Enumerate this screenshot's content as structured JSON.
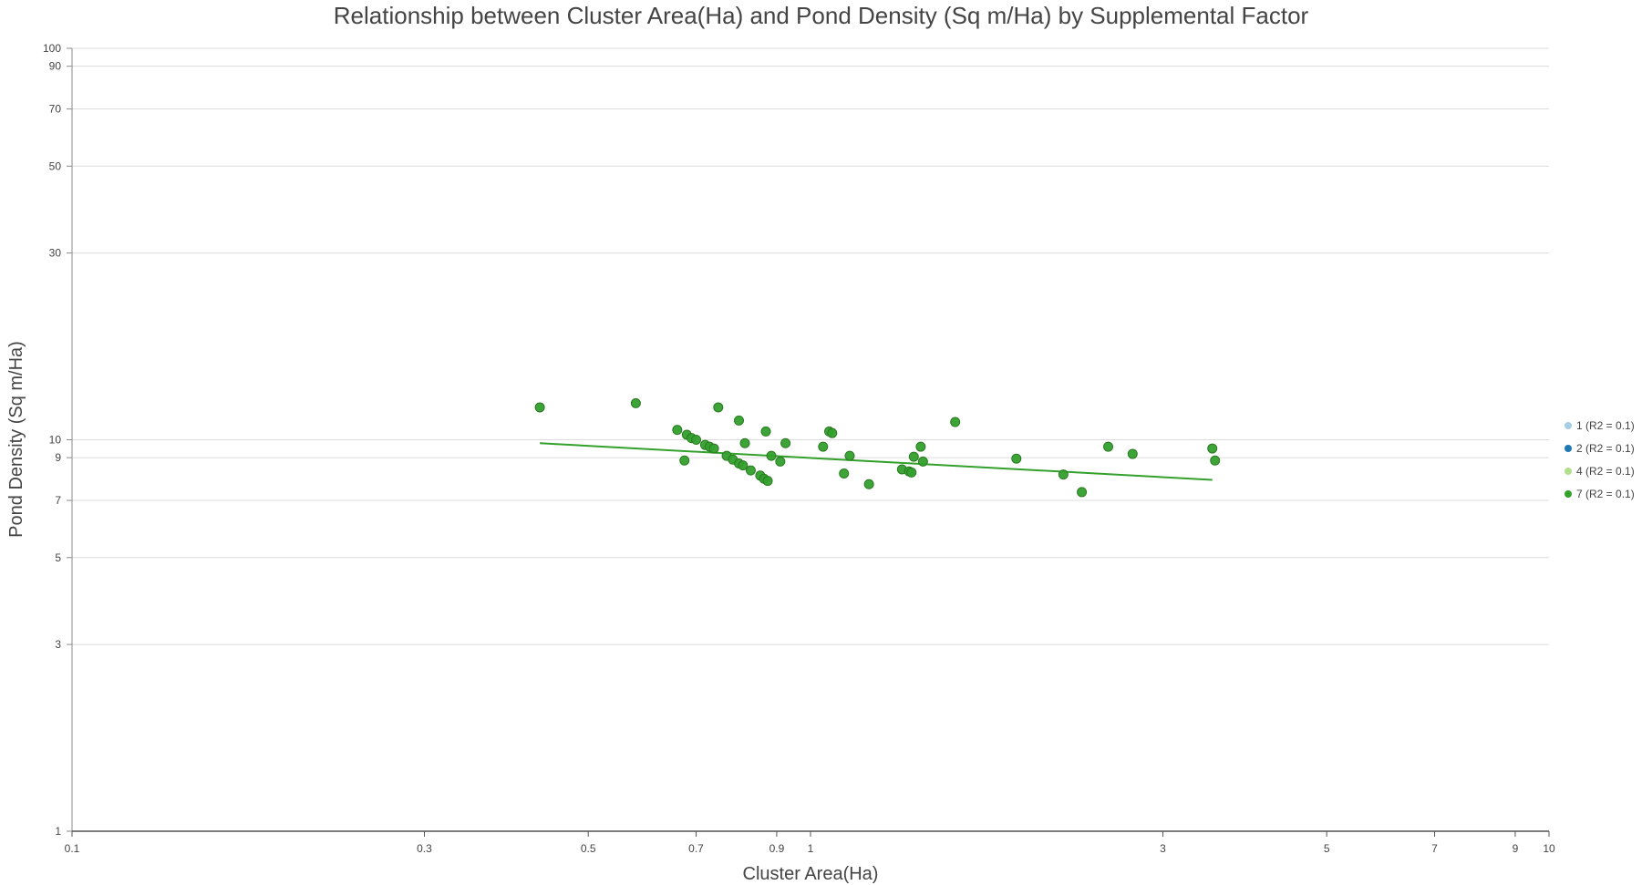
{
  "chart_data": {
    "type": "scatter",
    "title": "Relationship between Cluster Area(Ha) and Pond Density (Sq m/Ha) by Supplemental Factor",
    "xlabel": "Cluster Area(Ha)",
    "ylabel": "Pond Density (Sq m/Ha)",
    "x_scale": "log",
    "y_scale": "log",
    "xlim": [
      0.1,
      10
    ],
    "ylim": [
      1,
      100
    ],
    "x_ticks": [
      "0.1",
      "0.3",
      "0.5",
      "0.7",
      "0.9",
      "1",
      "3",
      "5",
      "7",
      "9",
      "10"
    ],
    "y_ticks": [
      "1",
      "3",
      "5",
      "7",
      "9",
      "10",
      "30",
      "50",
      "70",
      "90",
      "100"
    ],
    "grid": "horizontal",
    "legend_position": "right",
    "series": [
      {
        "name": "1 (R2 = 0.1)",
        "color": "#a6cee3",
        "points": []
      },
      {
        "name": "2 (R2 = 0.1)",
        "color": "#1f78b4",
        "points": []
      },
      {
        "name": "4 (R2 = 0.1)",
        "color": "#b2df8a",
        "points": []
      },
      {
        "name": "7 (R2 = 0.1)",
        "color": "#33a02c",
        "trendline": [
          [
            0.43,
            9.8
          ],
          [
            3.5,
            7.9
          ]
        ],
        "points": [
          [
            0.43,
            12.1
          ],
          [
            0.58,
            12.4
          ],
          [
            0.66,
            10.6
          ],
          [
            0.675,
            8.85
          ],
          [
            0.68,
            10.3
          ],
          [
            0.69,
            10.1
          ],
          [
            0.7,
            10.0
          ],
          [
            0.72,
            9.7
          ],
          [
            0.73,
            9.6
          ],
          [
            0.74,
            9.5
          ],
          [
            0.75,
            12.1
          ],
          [
            0.77,
            9.1
          ],
          [
            0.785,
            8.9
          ],
          [
            0.8,
            8.7
          ],
          [
            0.8,
            11.2
          ],
          [
            0.81,
            8.6
          ],
          [
            0.815,
            9.8
          ],
          [
            0.83,
            8.35
          ],
          [
            0.855,
            8.1
          ],
          [
            0.865,
            7.95
          ],
          [
            0.87,
            10.5
          ],
          [
            0.875,
            7.85
          ],
          [
            0.885,
            9.1
          ],
          [
            0.91,
            8.8
          ],
          [
            0.925,
            9.8
          ],
          [
            1.04,
            9.6
          ],
          [
            1.06,
            10.5
          ],
          [
            1.07,
            10.4
          ],
          [
            1.11,
            8.2
          ],
          [
            1.13,
            9.1
          ],
          [
            1.2,
            7.7
          ],
          [
            1.33,
            8.4
          ],
          [
            1.36,
            8.3
          ],
          [
            1.37,
            8.25
          ],
          [
            1.38,
            9.05
          ],
          [
            1.41,
            9.6
          ],
          [
            1.42,
            8.8
          ],
          [
            1.57,
            11.1
          ],
          [
            1.9,
            8.95
          ],
          [
            2.2,
            8.15
          ],
          [
            2.33,
            7.35
          ],
          [
            2.53,
            9.6
          ],
          [
            2.73,
            9.2
          ],
          [
            3.53,
            8.85
          ],
          [
            3.5,
            9.5
          ]
        ]
      }
    ]
  }
}
